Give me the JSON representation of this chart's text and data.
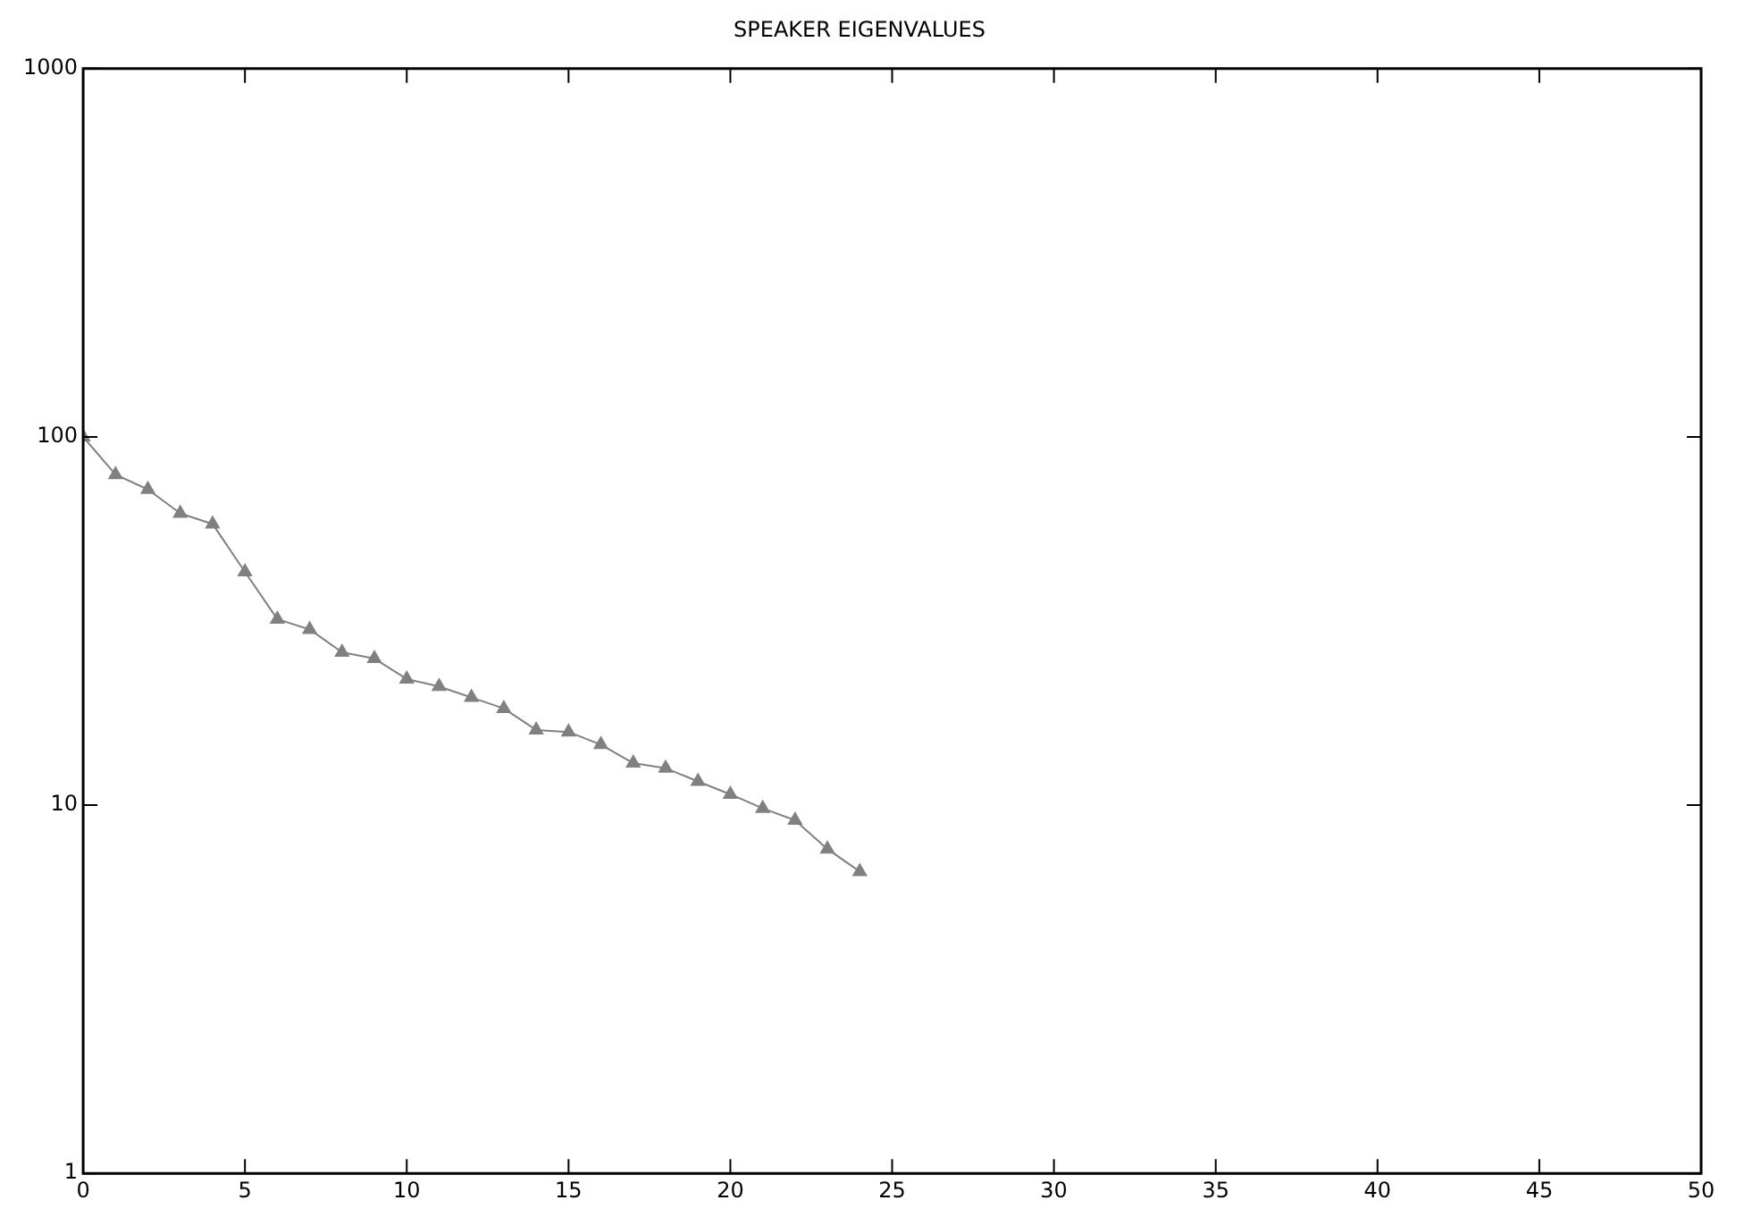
{
  "chart_data": {
    "type": "line",
    "title": "SPEAKER EIGENVALUES",
    "x": [
      0,
      1,
      2,
      3,
      4,
      5,
      6,
      7,
      8,
      9,
      10,
      11,
      12,
      13,
      14,
      15,
      16,
      17,
      18,
      19,
      20,
      21,
      22,
      23,
      24
    ],
    "series": [
      {
        "color": "#808080",
        "values": [
          100,
          79,
          72,
          62,
          58,
          43,
          32,
          30,
          26,
          25,
          22,
          21,
          19.6,
          18.3,
          16,
          15.8,
          14.6,
          13,
          12.6,
          11.6,
          10.7,
          9.8,
          9.1,
          7.6,
          6.6
        ]
      }
    ],
    "xlim": [
      0,
      50
    ],
    "xticks": [
      0,
      5,
      10,
      15,
      20,
      25,
      30,
      35,
      40,
      45,
      50
    ],
    "ylim": [
      1,
      1000
    ],
    "yticks": [
      1,
      10,
      100,
      1000
    ],
    "log": "y",
    "grid": false,
    "legend": false,
    "marker": "triangle",
    "line_style": "solid"
  }
}
